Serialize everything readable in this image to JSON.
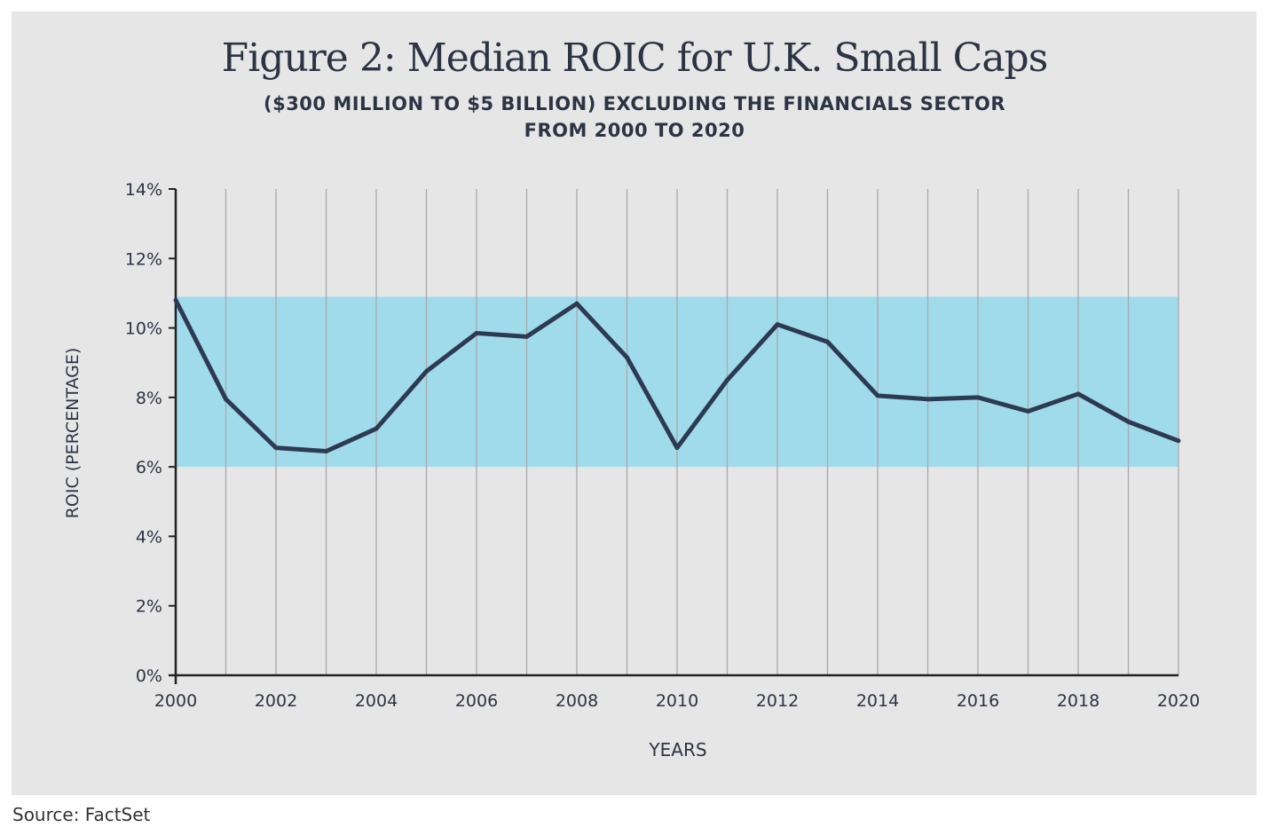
{
  "chart_data": {
    "type": "line",
    "title": "Figure 2: Median ROIC for U.K. Small Caps",
    "subtitle": [
      "($300 MILLION TO $5 BILLION) EXCLUDING THE FINANCIALS SECTOR",
      "FROM 2000 TO 2020"
    ],
    "xlabel": "YEARS",
    "ylabel": "ROIC (PERCENTAGE)",
    "ylim": [
      0,
      14
    ],
    "yticks": [
      "0%",
      "2%",
      "4%",
      "6%",
      "8%",
      "10%",
      "12%",
      "14%"
    ],
    "xticks": [
      "2000",
      "2002",
      "2004",
      "2006",
      "2008",
      "2010",
      "2012",
      "2014",
      "2016",
      "2018",
      "2020"
    ],
    "x": [
      2000,
      2001,
      2002,
      2003,
      2004,
      2005,
      2006,
      2007,
      2008,
      2009,
      2010,
      2011,
      2012,
      2013,
      2014,
      2015,
      2016,
      2017,
      2018,
      2019,
      2020
    ],
    "values": [
      10.8,
      7.95,
      6.55,
      6.45,
      7.1,
      8.75,
      9.85,
      9.75,
      10.7,
      9.15,
      6.55,
      8.5,
      10.1,
      9.6,
      8.05,
      7.95,
      8.0,
      7.6,
      8.1,
      7.3,
      6.75
    ],
    "band": [
      6.0,
      10.9
    ],
    "grid": "vertical",
    "colors": {
      "background": "#e6e6e7",
      "band": "#a0dbec",
      "line": "#2d3a52",
      "grid": "#a9a9ab",
      "text": "#2c3444"
    }
  },
  "source": "Source: FactSet"
}
